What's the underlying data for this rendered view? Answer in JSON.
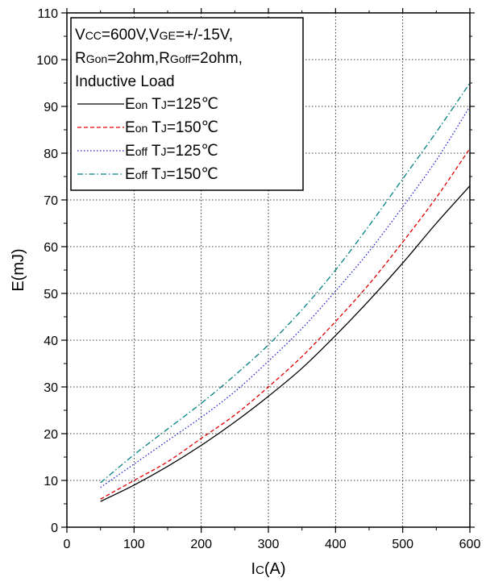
{
  "chart_data": {
    "type": "line",
    "xlabel_main": "I",
    "xlabel_sub": "C",
    "xlabel_unit": "(A)",
    "ylabel": "E(mJ)",
    "xlim": [
      0,
      600
    ],
    "ylim": [
      0,
      110
    ],
    "x_ticks": [
      0,
      100,
      200,
      300,
      400,
      500,
      600
    ],
    "y_ticks": [
      0,
      10,
      20,
      30,
      40,
      50,
      60,
      70,
      80,
      90,
      100,
      110
    ],
    "x_minor_step": 50,
    "y_minor_step": 5,
    "grid": true,
    "legend_position": "top-left",
    "conditions": [
      [
        {
          "t": "V",
          "sub": false
        },
        {
          "t": "CC",
          "sub": true
        },
        {
          "t": "=600V,V",
          "sub": false
        },
        {
          "t": "GE",
          "sub": true
        },
        {
          "t": "=+/-15V,",
          "sub": false
        }
      ],
      [
        {
          "t": "R",
          "sub": false
        },
        {
          "t": "Gon",
          "sub": true
        },
        {
          "t": "=2ohm,R",
          "sub": false
        },
        {
          "t": "Goff",
          "sub": true
        },
        {
          "t": "=2ohm,",
          "sub": false
        }
      ],
      [
        {
          "t": "Inductive Load",
          "sub": false
        }
      ]
    ],
    "series": [
      {
        "label": [
          {
            "t": "E",
            "sub": false
          },
          {
            "t": "on",
            "sub": true
          },
          {
            "t": " T",
            "sub": false
          },
          {
            "t": "J",
            "sub": true
          },
          {
            "t": "=125℃",
            "sub": false
          }
        ],
        "color": "#000000",
        "dash": "none",
        "x": [
          50,
          100,
          150,
          200,
          250,
          300,
          350,
          400,
          450,
          500,
          550,
          600
        ],
        "values": [
          5.5,
          9.0,
          13.0,
          17.5,
          22.5,
          28.0,
          34.0,
          41.0,
          48.5,
          56.5,
          65.0,
          73.0
        ]
      },
      {
        "label": [
          {
            "t": "E",
            "sub": false
          },
          {
            "t": "on",
            "sub": true
          },
          {
            "t": " T",
            "sub": false
          },
          {
            "t": "J",
            "sub": true
          },
          {
            "t": "=150℃",
            "sub": false
          }
        ],
        "color": "#e00000",
        "dash": "5,3",
        "x": [
          50,
          100,
          150,
          200,
          250,
          300,
          350,
          400,
          450,
          500,
          550,
          600
        ],
        "values": [
          6.0,
          10.0,
          14.0,
          19.0,
          24.0,
          30.0,
          36.5,
          44.0,
          52.0,
          61.0,
          70.5,
          81.0
        ]
      },
      {
        "label": [
          {
            "t": "E",
            "sub": false
          },
          {
            "t": "off",
            "sub": true
          },
          {
            "t": " T",
            "sub": false
          },
          {
            "t": "J",
            "sub": true
          },
          {
            "t": "=125℃",
            "sub": false
          }
        ],
        "color": "#2020d0",
        "dash": "1.5,2.5",
        "x": [
          50,
          100,
          150,
          200,
          250,
          300,
          350,
          400,
          450,
          500,
          550,
          600
        ],
        "values": [
          8.5,
          13.5,
          18.5,
          23.5,
          29.0,
          35.5,
          42.5,
          50.5,
          59.0,
          68.5,
          78.5,
          90.0
        ]
      },
      {
        "label": [
          {
            "t": "E",
            "sub": false
          },
          {
            "t": "off",
            "sub": true
          },
          {
            "t": " T",
            "sub": false
          },
          {
            "t": "J",
            "sub": true
          },
          {
            "t": "=150℃",
            "sub": false
          }
        ],
        "color": "#008080",
        "dash": "7,3,1.5,3",
        "x": [
          50,
          100,
          150,
          200,
          250,
          300,
          350,
          400,
          450,
          500,
          550,
          600
        ],
        "values": [
          9.5,
          15.5,
          21.0,
          26.5,
          32.5,
          39.0,
          46.5,
          55.0,
          64.5,
          74.5,
          84.5,
          95.0
        ]
      }
    ]
  }
}
